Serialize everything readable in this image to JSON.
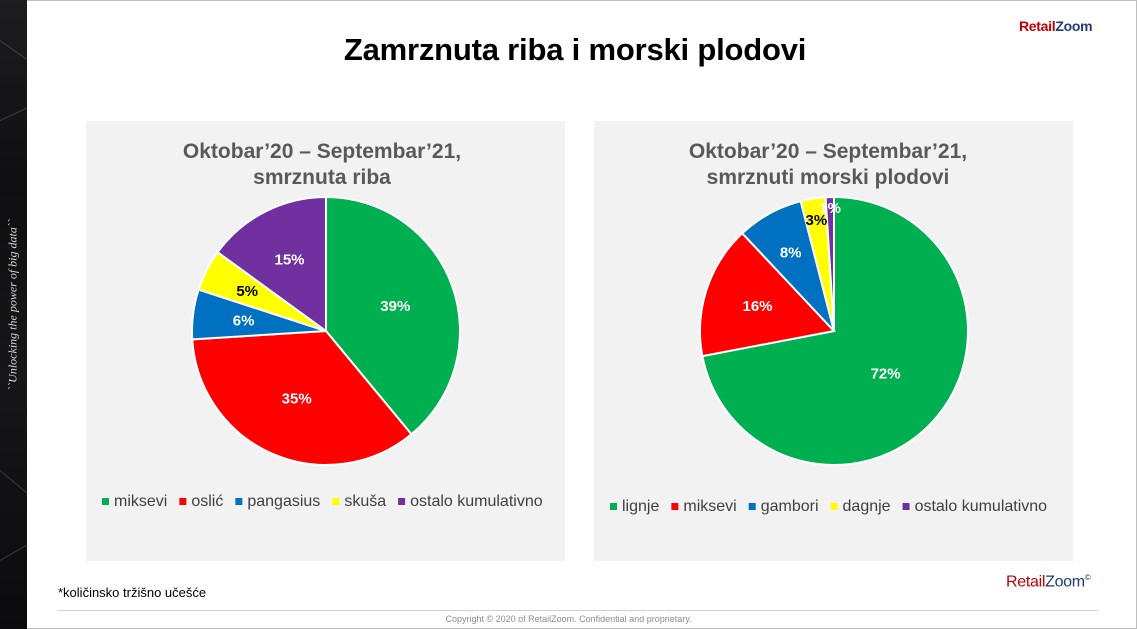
{
  "title": "Zamrznuta riba i morski plodovi",
  "brand": {
    "retail": "Retail",
    "zoom": "Zoom",
    "mark": "©"
  },
  "side_tagline": "``Unlocking the power of big data``",
  "footnote": "*količinsko tržišno učešće",
  "copyright": "Copyright © 2020 of RetailZoom. Confidential and proprietary.",
  "colors": {
    "green": "#00b050",
    "red": "#ff0000",
    "blue": "#0070c0",
    "yellow": "#ffff00",
    "purple": "#7030a0",
    "panel": "#f2f2f2",
    "brand_red": "#c00000",
    "brand_blue": "#1f3b73"
  },
  "chart_data": [
    {
      "type": "pie",
      "title_lines": [
        "Oktobar’20 – Septembar’21,",
        "smrznuta riba"
      ],
      "legend_position": "bottom",
      "slices": [
        {
          "label": "miksevi",
          "value": 39,
          "display": "39%",
          "color": "#00b050"
        },
        {
          "label": "oslić",
          "value": 35,
          "display": "35%",
          "color": "#ff0000"
        },
        {
          "label": "pangasius",
          "value": 6,
          "display": "6%",
          "color": "#0070c0"
        },
        {
          "label": "skuša",
          "value": 5,
          "display": "5%",
          "color": "#ffff00"
        },
        {
          "label": "ostalo kumulativno",
          "value": 15,
          "display": "15%",
          "color": "#7030a0"
        }
      ]
    },
    {
      "type": "pie",
      "title_lines": [
        "Oktobar’20 – Septembar’21,",
        "smrznuti morski plodovi"
      ],
      "legend_position": "bottom",
      "slices": [
        {
          "label": "lignje",
          "value": 72,
          "display": "72%",
          "color": "#00b050"
        },
        {
          "label": "miksevi",
          "value": 16,
          "display": "16%",
          "color": "#ff0000"
        },
        {
          "label": "gambori",
          "value": 8,
          "display": "8%",
          "color": "#0070c0"
        },
        {
          "label": "dagnje",
          "value": 3,
          "display": "3%",
          "color": "#ffff00"
        },
        {
          "label": "ostalo kumulativno",
          "value": 1,
          "display": "1%",
          "color": "#7030a0"
        }
      ]
    }
  ]
}
